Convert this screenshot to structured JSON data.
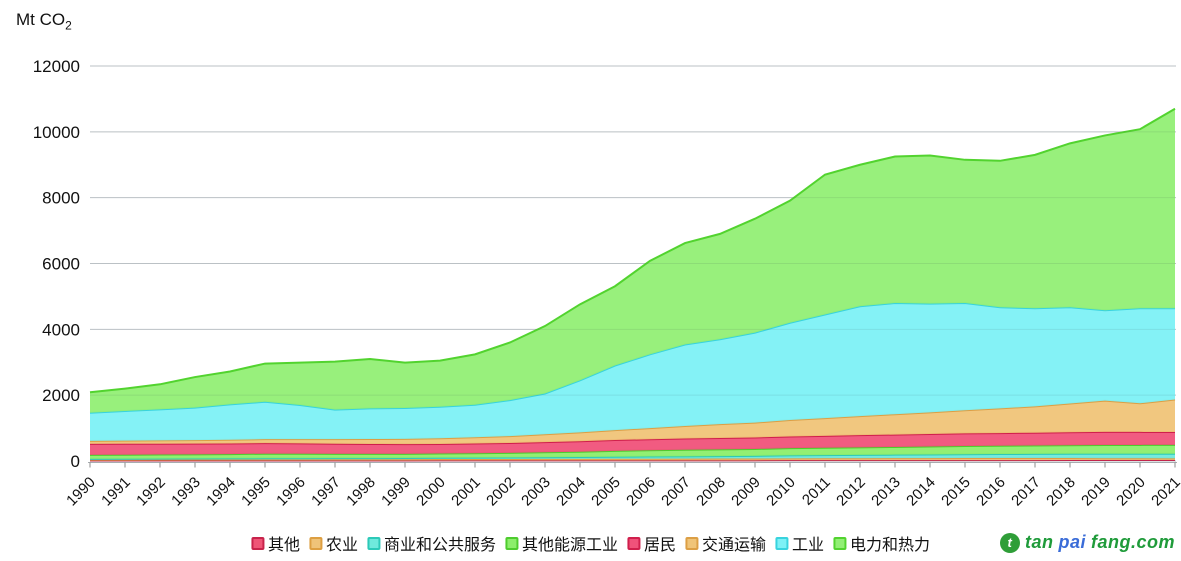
{
  "header": {
    "unit_text": "Mt CO",
    "unit_sub": "2"
  },
  "watermark": {
    "part1": "tan",
    "part2": "pai",
    "part3": "fang.com",
    "icon_letter": "t"
  },
  "chart_data": {
    "type": "area",
    "stacked": true,
    "title": "",
    "ylabel": "Mt CO2",
    "xlabel": "",
    "ylim": [
      0,
      12000
    ],
    "yticks": [
      0,
      2000,
      4000,
      6000,
      8000,
      10000,
      12000
    ],
    "grid": "horizontal",
    "legend_position": "bottom-center",
    "categories": [
      "1990",
      "1991",
      "1992",
      "1993",
      "1994",
      "1995",
      "1996",
      "1997",
      "1998",
      "1999",
      "2000",
      "2001",
      "2002",
      "2003",
      "2004",
      "2005",
      "2006",
      "2007",
      "2008",
      "2009",
      "2010",
      "2011",
      "2012",
      "2013",
      "2014",
      "2015",
      "2016",
      "2017",
      "2018",
      "2019",
      "2020",
      "2021"
    ],
    "series": [
      {
        "id": "other",
        "name": "其他",
        "fill": "#ef5577",
        "stroke": "#c8234b",
        "values": [
          15,
          15,
          15,
          15,
          15,
          15,
          15,
          15,
          15,
          15,
          20,
          20,
          20,
          20,
          20,
          20,
          20,
          20,
          20,
          20,
          25,
          25,
          25,
          25,
          25,
          25,
          25,
          25,
          30,
          30,
          30,
          30
        ]
      },
      {
        "id": "agriculture",
        "name": "农业",
        "fill": "#efc379",
        "stroke": "#dd9f42",
        "values": [
          25,
          27,
          29,
          31,
          33,
          35,
          36,
          37,
          38,
          39,
          40,
          41,
          42,
          44,
          46,
          48,
          50,
          52,
          54,
          55,
          56,
          58,
          60,
          62,
          64,
          65,
          66,
          65,
          60,
          55,
          52,
          50
        ]
      },
      {
        "id": "commercial-public-services",
        "name": "商业和公共服务",
        "fill": "#6fe9dc",
        "stroke": "#2cc9b8",
        "values": [
          25,
          26,
          27,
          28,
          30,
          32,
          33,
          34,
          35,
          36,
          38,
          40,
          45,
          50,
          55,
          60,
          65,
          70,
          75,
          80,
          90,
          95,
          100,
          105,
          110,
          115,
          120,
          125,
          130,
          135,
          138,
          140
        ]
      },
      {
        "id": "other-energy-industries",
        "name": "其他能源工业",
        "fill": "#8cee6b",
        "stroke": "#4ecc2e",
        "values": [
          120,
          122,
          125,
          128,
          132,
          140,
          135,
          132,
          130,
          128,
          130,
          135,
          140,
          150,
          160,
          180,
          190,
          200,
          205,
          210,
          220,
          225,
          230,
          235,
          240,
          250,
          252,
          255,
          260,
          265,
          268,
          270
        ]
      },
      {
        "id": "residential",
        "name": "居民",
        "fill": "#f0527a",
        "stroke": "#d01f4c",
        "values": [
          335,
          335,
          330,
          325,
          320,
          320,
          315,
          305,
          300,
          295,
          290,
          295,
          300,
          310,
          320,
          330,
          335,
          340,
          345,
          350,
          355,
          360,
          370,
          375,
          380,
          385,
          385,
          390,
          395,
          400,
          395,
          390
        ]
      },
      {
        "id": "transport",
        "name": "交通运输",
        "fill": "#f0c478",
        "stroke": "#dc9f45",
        "values": [
          90,
          95,
          100,
          108,
          115,
          122,
          130,
          140,
          150,
          160,
          175,
          190,
          210,
          240,
          270,
          300,
          340,
          380,
          420,
          450,
          500,
          540,
          580,
          620,
          660,
          700,
          750,
          800,
          870,
          950,
          870,
          990
        ]
      },
      {
        "id": "industry",
        "name": "工业",
        "fill": "#7df1f6",
        "stroke": "#38d3de",
        "values": [
          855,
          900,
          944,
          985,
          1075,
          1136,
          1036,
          897,
          932,
          937,
          957,
          989,
          1093,
          1236,
          1579,
          1962,
          2240,
          2478,
          2581,
          2735,
          2954,
          3147,
          3335,
          3378,
          3301,
          3260,
          3072,
          2980,
          2925,
          2745,
          2887,
          2770
        ]
      },
      {
        "id": "electricity-heat",
        "name": "电力和热力",
        "fill": "#92ef75",
        "stroke": "#52d32f",
        "values": [
          625,
          680,
          760,
          930,
          1000,
          1160,
          1290,
          1460,
          1500,
          1380,
          1400,
          1530,
          1750,
          2050,
          2310,
          2410,
          2840,
          3080,
          3200,
          3460,
          3710,
          4250,
          4300,
          4450,
          4500,
          4350,
          4450,
          4660,
          4980,
          5310,
          5440,
          6060
        ]
      }
    ]
  }
}
